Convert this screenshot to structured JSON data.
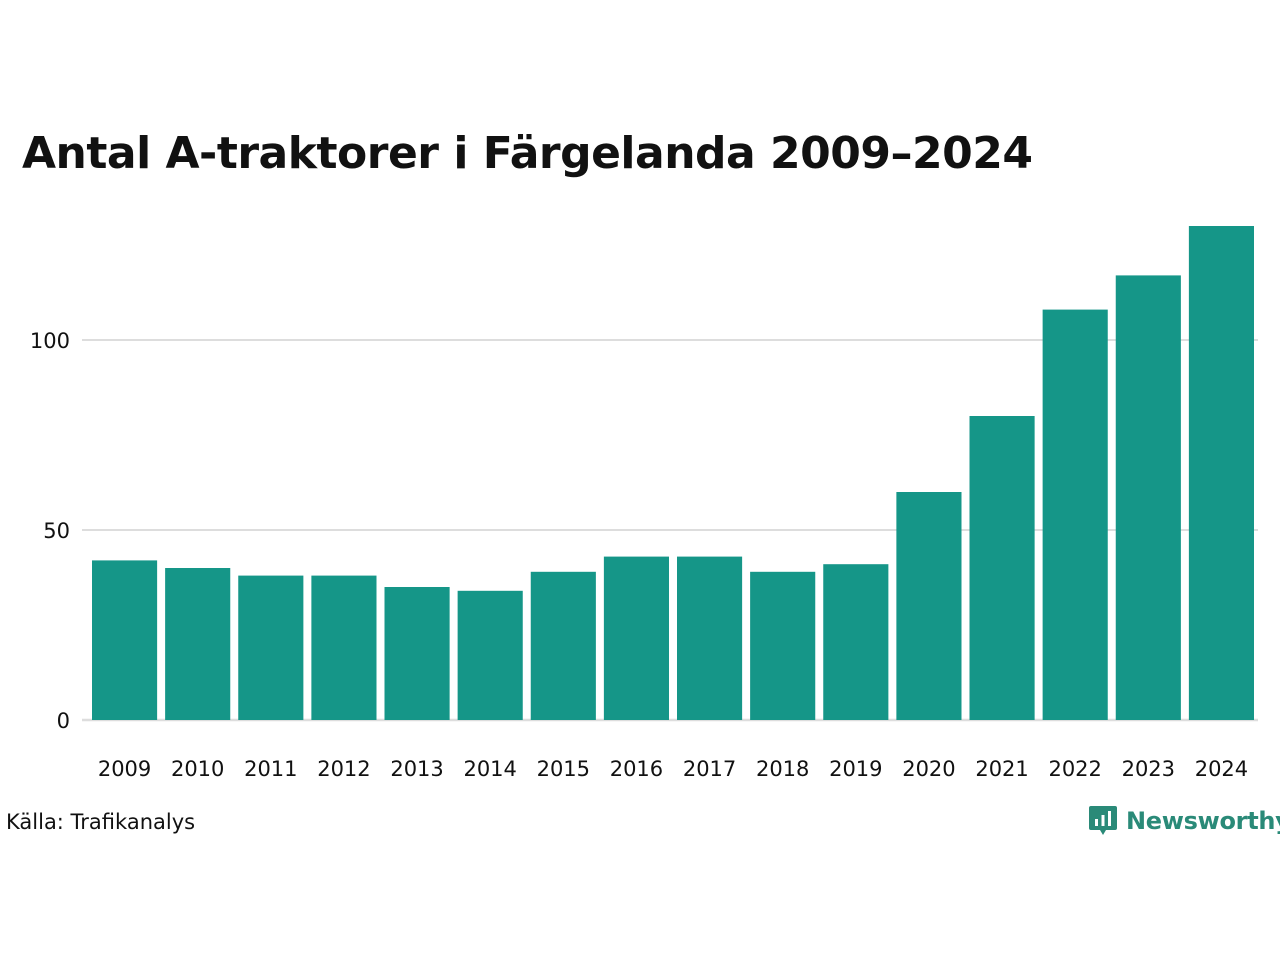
{
  "title": "Antal A-traktorer i Färgelanda 2009–2024",
  "source": "Källa: Trafikanalys",
  "brand": {
    "name": "Newsworthy",
    "icon": "newsworthy-logo-icon"
  },
  "colors": {
    "bar": "#159688",
    "grid": "#dddddd",
    "brand": "#2a8a78"
  },
  "chart_data": {
    "type": "bar",
    "categories": [
      "2009",
      "2010",
      "2011",
      "2012",
      "2013",
      "2014",
      "2015",
      "2016",
      "2017",
      "2018",
      "2019",
      "2020",
      "2021",
      "2022",
      "2023",
      "2024"
    ],
    "values": [
      42,
      40,
      38,
      38,
      35,
      34,
      39,
      43,
      43,
      39,
      41,
      60,
      80,
      108,
      117,
      130
    ],
    "yticks": [
      0,
      50,
      100
    ],
    "ylim": [
      0,
      130
    ],
    "grid": true,
    "legend": "none"
  }
}
